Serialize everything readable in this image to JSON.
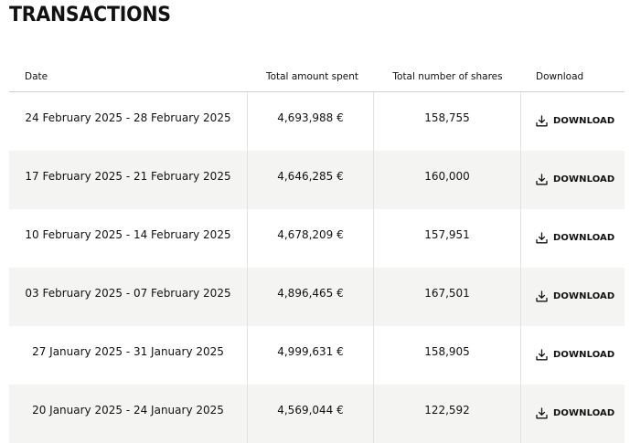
{
  "page": {
    "title": "TRANSACTIONS"
  },
  "table": {
    "headers": {
      "date": "Date",
      "amount": "Total amount spent",
      "shares": "Total number of shares",
      "download": "Download"
    },
    "rows": [
      {
        "date": "24 February 2025 - 28 February 2025",
        "amount": "4,693,988 €",
        "shares": "158,755",
        "download": "DOWNLOAD"
      },
      {
        "date": "17 February 2025 - 21 February 2025",
        "amount": "4,646,285 €",
        "shares": "160,000",
        "download": "DOWNLOAD"
      },
      {
        "date": "10 February 2025 - 14 February 2025",
        "amount": "4,678,209 €",
        "shares": "157,951",
        "download": "DOWNLOAD"
      },
      {
        "date": "03 February 2025 - 07 February 2025",
        "amount": "4,896,465 €",
        "shares": "167,501",
        "download": "DOWNLOAD"
      },
      {
        "date": "27 January 2025 - 31 January 2025",
        "amount": "4,999,631 €",
        "shares": "158,905",
        "download": "DOWNLOAD"
      },
      {
        "date": "20 January 2025 - 24 January 2025",
        "amount": "4,569,044 €",
        "shares": "122,592",
        "download": "DOWNLOAD"
      }
    ]
  },
  "icons": {
    "download": "download-icon"
  },
  "colors": {
    "text": "#111111",
    "row_alt_background": "#f4f4f2",
    "divider": "#cfcfcf"
  }
}
